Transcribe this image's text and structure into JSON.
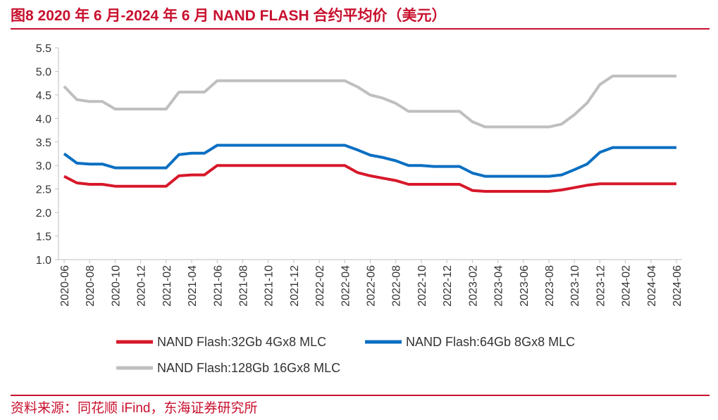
{
  "title": "图8  2020 年 6 月-2024 年 6 月 NAND FLASH 合约平均价（美元）",
  "source": "资料来源：同花顺 iFind，东海证券研究所",
  "colors": {
    "accent": "#c8102e",
    "red": "#d7182a",
    "blue": "#0a6fc2",
    "gray": "#bfbfbf"
  },
  "chart_data": {
    "type": "line",
    "ylim": [
      1.0,
      5.5
    ],
    "yticks": [
      "5.5",
      "5.0",
      "4.5",
      "4.0",
      "3.5",
      "3.0",
      "2.5",
      "2.0",
      "1.5",
      "1.0"
    ],
    "xticks": [
      "2020-06",
      "2020-08",
      "2020-10",
      "2020-12",
      "2021-02",
      "2021-04",
      "2021-06",
      "2021-08",
      "2021-10",
      "2021-12",
      "2022-02",
      "2022-04",
      "2022-06",
      "2022-08",
      "2022-10",
      "2022-12",
      "2023-02",
      "2023-04",
      "2023-06",
      "2023-08",
      "2023-10",
      "2023-12",
      "2024-02",
      "2024-04",
      "2024-06"
    ],
    "x": [
      "2020-06",
      "2020-07",
      "2020-08",
      "2020-09",
      "2020-10",
      "2020-11",
      "2020-12",
      "2021-01",
      "2021-02",
      "2021-03",
      "2021-04",
      "2021-05",
      "2021-06",
      "2021-07",
      "2021-08",
      "2021-09",
      "2021-10",
      "2021-11",
      "2021-12",
      "2022-01",
      "2022-02",
      "2022-03",
      "2022-04",
      "2022-05",
      "2022-06",
      "2022-07",
      "2022-08",
      "2022-09",
      "2022-10",
      "2022-11",
      "2022-12",
      "2023-01",
      "2023-02",
      "2023-03",
      "2023-04",
      "2023-05",
      "2023-06",
      "2023-07",
      "2023-08",
      "2023-09",
      "2023-10",
      "2023-11",
      "2023-12",
      "2024-01",
      "2024-02",
      "2024-03",
      "2024-04",
      "2024-05",
      "2024-06"
    ],
    "series": [
      {
        "name": "NAND Flash:32Gb 4Gx8 MLC",
        "color": "#d7182a",
        "values": [
          2.77,
          2.63,
          2.6,
          2.6,
          2.56,
          2.56,
          2.56,
          2.56,
          2.56,
          2.78,
          2.8,
          2.8,
          3.0,
          3.0,
          3.0,
          3.0,
          3.0,
          3.0,
          3.0,
          3.0,
          3.0,
          3.0,
          3.0,
          2.85,
          2.78,
          2.73,
          2.68,
          2.6,
          2.6,
          2.6,
          2.6,
          2.6,
          2.47,
          2.45,
          2.45,
          2.45,
          2.45,
          2.45,
          2.45,
          2.48,
          2.53,
          2.58,
          2.61,
          2.61,
          2.61,
          2.61,
          2.61,
          2.61,
          2.61
        ]
      },
      {
        "name": "NAND Flash:64Gb 8Gx8 MLC",
        "color": "#0a6fc2",
        "values": [
          3.25,
          3.05,
          3.03,
          3.03,
          2.95,
          2.95,
          2.95,
          2.95,
          2.95,
          3.23,
          3.26,
          3.26,
          3.43,
          3.43,
          3.43,
          3.43,
          3.43,
          3.43,
          3.43,
          3.43,
          3.43,
          3.43,
          3.43,
          3.33,
          3.22,
          3.17,
          3.1,
          3.0,
          3.0,
          2.98,
          2.98,
          2.98,
          2.84,
          2.77,
          2.77,
          2.77,
          2.77,
          2.77,
          2.77,
          2.8,
          2.91,
          3.03,
          3.28,
          3.38,
          3.38,
          3.38,
          3.38,
          3.38,
          3.38
        ]
      },
      {
        "name": "NAND Flash:128Gb 16Gx8 MLC",
        "color": "#bfbfbf",
        "values": [
          4.68,
          4.4,
          4.36,
          4.36,
          4.2,
          4.2,
          4.2,
          4.2,
          4.2,
          4.56,
          4.56,
          4.56,
          4.8,
          4.8,
          4.8,
          4.8,
          4.8,
          4.8,
          4.8,
          4.8,
          4.8,
          4.8,
          4.8,
          4.67,
          4.5,
          4.43,
          4.32,
          4.15,
          4.15,
          4.15,
          4.15,
          4.15,
          3.93,
          3.82,
          3.82,
          3.82,
          3.82,
          3.82,
          3.82,
          3.88,
          4.08,
          4.33,
          4.72,
          4.9,
          4.9,
          4.9,
          4.9,
          4.9,
          4.9
        ]
      }
    ]
  }
}
